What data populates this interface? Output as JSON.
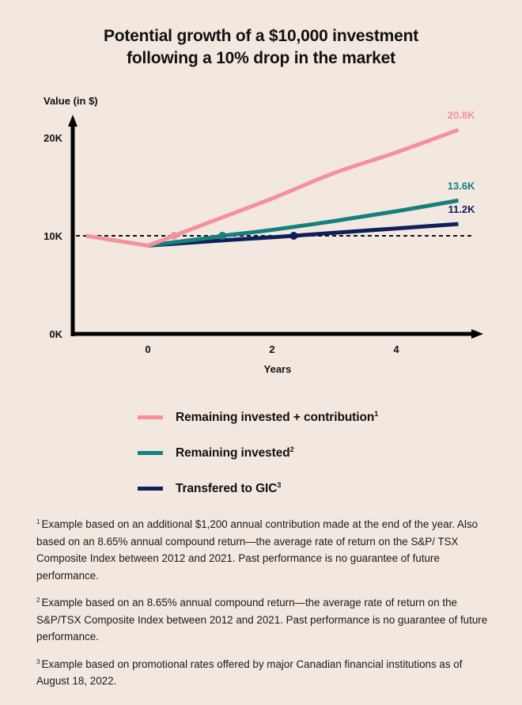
{
  "title": {
    "line1": "Potential growth of a $10,000 investment",
    "line2": "following a 10% drop in the market"
  },
  "chart_data": {
    "type": "line",
    "title": "Potential growth of a $10,000 investment following a 10% drop in the market",
    "xlabel": "Years",
    "ylabel": "Value (in $)",
    "xlim": [
      -1,
      5
    ],
    "ylim": [
      0,
      20000
    ],
    "x_ticks": [
      0,
      2,
      4
    ],
    "x_tick_labels": [
      "0",
      "2",
      "4"
    ],
    "y_ticks": [
      0,
      10000,
      20000
    ],
    "y_tick_labels": [
      "0K",
      "10K",
      "20K"
    ],
    "grid": false,
    "reference_line": {
      "y": 10000,
      "style": "dashed",
      "color": "#111111"
    },
    "series": [
      {
        "name": "Remaining invested + contribution",
        "footnote": "1",
        "color": "#f4919b",
        "x": [
          -1,
          0,
          0.42,
          1,
          2,
          3,
          4,
          5
        ],
        "values": [
          10000,
          9000,
          10000,
          11400,
          13800,
          16400,
          18500,
          20800
        ],
        "breakeven_marker": {
          "x": 0.42,
          "y": 10000
        },
        "end_label": "20.8K"
      },
      {
        "name": "Remaining invested",
        "footnote": "2",
        "color": "#15807f",
        "x": [
          0,
          1,
          1.2,
          2,
          3,
          4,
          5
        ],
        "values": [
          9000,
          9800,
          10000,
          10600,
          11500,
          12500,
          13600
        ],
        "breakeven_marker": {
          "x": 1.2,
          "y": 10000
        },
        "end_label": "13.6K"
      },
      {
        "name": "Transfered to GIC",
        "footnote": "3",
        "color": "#0f1f5c",
        "x": [
          0,
          1,
          2,
          2.35,
          3,
          4,
          5
        ],
        "values": [
          9000,
          9450,
          9850,
          10000,
          10300,
          10750,
          11200
        ],
        "breakeven_marker": {
          "x": 2.35,
          "y": 10000
        },
        "end_label": "11.2K"
      }
    ],
    "legend": "bottom"
  },
  "legend": [
    {
      "label": "Remaining invested + contribution",
      "sup": "1",
      "color": "#f4919b"
    },
    {
      "label": "Remaining invested",
      "sup": "2",
      "color": "#15807f"
    },
    {
      "label": "Transfered to GIC",
      "sup": "3",
      "color": "#0f1f5c"
    }
  ],
  "footnotes": [
    {
      "sup": "1",
      "text": "Example based on an additional $1,200 annual contribution made at the end of the year. Also based on an 8.65% annual compound return—the average rate of return on the S&P/ TSX Composite Index between 2012 and 2021. Past performance is no guarantee of future performance."
    },
    {
      "sup": "2",
      "text": "Example based on an 8.65% annual compound return—the average rate of return on the S&P/TSX Composite Index between 2012 and 2021. Past performance is no guarantee of future performance."
    },
    {
      "sup": "3",
      "text": "Example based on promotional rates offered by major Canadian financial institutions as of August 18, 2022."
    }
  ]
}
